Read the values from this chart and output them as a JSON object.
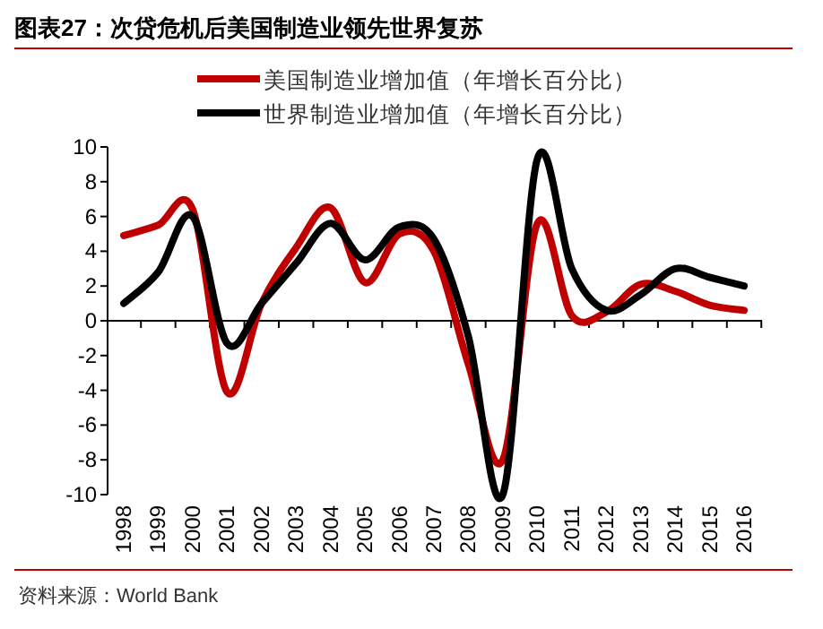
{
  "chart_data": {
    "type": "line",
    "title": "图表27：次贷危机后美国制造业领先世界复苏",
    "categories": [
      "1998",
      "1999",
      "2000",
      "2001",
      "2002",
      "2003",
      "2004",
      "2005",
      "2006",
      "2007",
      "2008",
      "2009",
      "2010",
      "2011",
      "2012",
      "2013",
      "2014",
      "2015",
      "2016"
    ],
    "series": [
      {
        "name": "美国制造业增加值（年增长百分比）",
        "color": "#c00000",
        "values": [
          4.9,
          5.5,
          6.4,
          -4.1,
          1.0,
          4.2,
          6.5,
          2.2,
          5.0,
          4.0,
          -2.5,
          -8.0,
          5.6,
          0.3,
          0.5,
          2.1,
          1.7,
          0.9,
          0.6
        ]
      },
      {
        "name": "世界制造业增加值（年增长百分比）",
        "color": "#000000",
        "values": [
          1.0,
          2.8,
          6.0,
          -1.3,
          1.0,
          3.3,
          5.6,
          3.5,
          5.4,
          4.7,
          -0.9,
          -10.0,
          9.3,
          3.0,
          0.6,
          1.5,
          3.0,
          2.5,
          2.0
        ]
      }
    ],
    "ylim": [
      -10,
      10
    ],
    "yticks": [
      -10,
      -8,
      -6,
      -4,
      -2,
      0,
      2,
      4,
      6,
      8,
      10
    ],
    "legend": "top",
    "marker": "none",
    "line_style": "solid",
    "annotations": [
      "资料来源：World Bank"
    ]
  }
}
